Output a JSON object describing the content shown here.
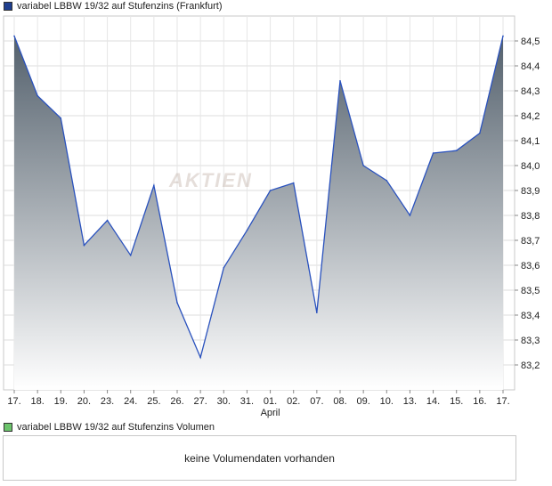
{
  "legend": {
    "price_label": "variabel LBBW 19/32 auf Stufenzins (Frankfurt)",
    "price_color": "#1f3f8f",
    "volume_label": "variabel LBBW 19/32 auf Stufenzins Volumen",
    "volume_color": "#6cc46c"
  },
  "watermark": "AKTIEN",
  "volume_message": "keine Volumendaten vorhanden",
  "chart_data": {
    "type": "area",
    "categories": [
      "17.",
      "18.",
      "19.",
      "20.",
      "23.",
      "24.",
      "25.",
      "26.",
      "27.",
      "30.",
      "31.",
      "01.",
      "02.",
      "07.",
      "08.",
      "09.",
      "10.",
      "13.",
      "14.",
      "15.",
      "16.",
      "17."
    ],
    "month_label": "April",
    "series": [
      {
        "name": "variabel LBBW 19/32 auf Stufenzins (Frankfurt)",
        "values": [
          84.52,
          84.28,
          84.19,
          83.68,
          83.78,
          83.64,
          83.92,
          83.45,
          83.23,
          83.59,
          83.74,
          83.9,
          83.93,
          83.41,
          84.34,
          84.0,
          83.94,
          83.8,
          84.05,
          84.06,
          84.13,
          84.52
        ]
      }
    ],
    "ylim": [
      83.1,
      84.6
    ],
    "yticks": [
      "83,2",
      "83,3",
      "83,4",
      "83,5",
      "83,6",
      "83,7",
      "83,8",
      "83,9",
      "84,0",
      "84,1",
      "84,2",
      "84,3",
      "84,4",
      "84,5"
    ],
    "grid": true,
    "line_color": "#2a52be",
    "fill_top": "#53606c",
    "fill_bottom": "#ffffff"
  }
}
